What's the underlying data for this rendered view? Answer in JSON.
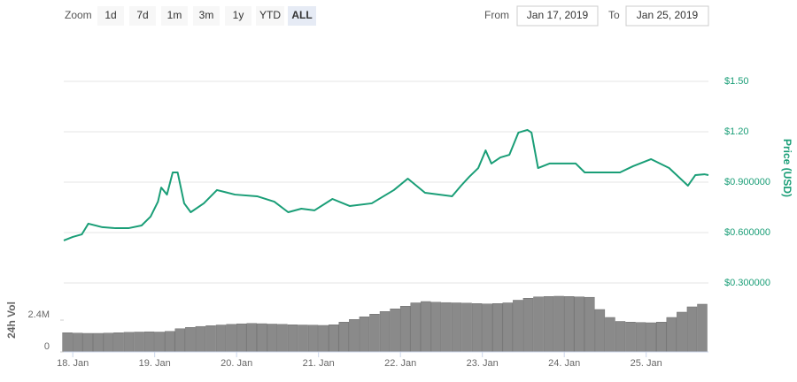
{
  "controls": {
    "zoom_label": "Zoom",
    "zoom_buttons": [
      "1d",
      "7d",
      "1m",
      "3m",
      "1y",
      "YTD",
      "ALL"
    ],
    "selected": "ALL",
    "from_label": "From",
    "from_value": "Jan 17, 2019",
    "to_label": "To",
    "to_value": "Jan 25, 2019"
  },
  "chart_data": [
    {
      "type": "line",
      "ylabel": "Price (USD)",
      "color": "#1a9e77",
      "grid": true,
      "xlim": [
        17.89,
        25.76
      ],
      "ylim": [
        0.3,
        1.75
      ],
      "yticks": [
        {
          "value": 0.3,
          "label": "$0.300000"
        },
        {
          "value": 0.6,
          "label": "$0.600000"
        },
        {
          "value": 0.9,
          "label": "$0.900000"
        },
        {
          "value": 1.2,
          "label": "$1.20"
        },
        {
          "value": 1.5,
          "label": "$1.50"
        }
      ],
      "x": [
        17.89,
        18.0,
        18.11,
        18.19,
        18.36,
        18.52,
        18.68,
        18.84,
        18.95,
        19.04,
        19.08,
        19.15,
        19.22,
        19.28,
        19.36,
        19.44,
        19.6,
        19.76,
        19.98,
        20.25,
        20.46,
        20.63,
        20.79,
        20.95,
        21.17,
        21.38,
        21.65,
        21.92,
        22.09,
        22.3,
        22.63,
        22.74,
        22.84,
        22.95,
        23.04,
        23.11,
        23.22,
        23.33,
        23.44,
        23.55,
        23.6,
        23.68,
        23.82,
        24.14,
        24.25,
        24.68,
        24.84,
        25.06,
        25.28,
        25.51,
        25.6,
        25.71,
        25.76
      ],
      "series": [
        {
          "color": "#1a9e77",
          "values": [
            0.553,
            0.574,
            0.589,
            0.653,
            0.632,
            0.626,
            0.626,
            0.642,
            0.695,
            0.784,
            0.868,
            0.826,
            0.958,
            0.958,
            0.774,
            0.721,
            0.774,
            0.853,
            0.826,
            0.816,
            0.784,
            0.721,
            0.742,
            0.732,
            0.8,
            0.758,
            0.774,
            0.853,
            0.921,
            0.837,
            0.816,
            0.879,
            0.932,
            0.984,
            1.089,
            1.011,
            1.047,
            1.063,
            1.195,
            1.211,
            1.195,
            0.984,
            1.011,
            1.011,
            0.958,
            0.958,
            0.995,
            1.037,
            0.984,
            0.879,
            0.942,
            0.947,
            0.942
          ]
        }
      ]
    },
    {
      "type": "bar",
      "ylabel": "24h Vol",
      "color": "#8a8a8a",
      "xlim": [
        17.89,
        25.76
      ],
      "ylim": [
        0,
        4900000
      ],
      "yticks": [
        0,
        {
          "value": 2400000,
          "label": "2.4M"
        }
      ],
      "xticks": [
        {
          "value": 18,
          "label": "18. Jan"
        },
        {
          "value": 19,
          "label": "19. Jan"
        },
        {
          "value": 20,
          "label": "20. Jan"
        },
        {
          "value": 21,
          "label": "21. Jan"
        },
        {
          "value": 22,
          "label": "22. Jan"
        },
        {
          "value": 23,
          "label": "23. Jan"
        },
        {
          "value": 24,
          "label": "24. Jan"
        },
        {
          "value": 25,
          "label": "25. Jan"
        }
      ],
      "x": [
        17.9375,
        18.0625,
        18.1875,
        18.3125,
        18.4375,
        18.5625,
        18.6875,
        18.8125,
        18.9375,
        19.0625,
        19.1875,
        19.3125,
        19.4375,
        19.5625,
        19.6875,
        19.8125,
        19.9375,
        20.0625,
        20.1875,
        20.3125,
        20.4375,
        20.5625,
        20.6875,
        20.8125,
        20.9375,
        21.0625,
        21.1875,
        21.3125,
        21.4375,
        21.5625,
        21.6875,
        21.8125,
        21.9375,
        22.0625,
        22.1875,
        22.3125,
        22.4375,
        22.5625,
        22.6875,
        22.8125,
        22.9375,
        23.0625,
        23.1875,
        23.3125,
        23.4375,
        23.5625,
        23.6875,
        23.8125,
        23.9375,
        24.0625,
        24.1875,
        24.3125,
        24.4375,
        24.5625,
        24.6875,
        24.8125,
        24.9375,
        25.0625,
        25.1875,
        25.3125,
        25.4375,
        25.5625,
        25.6875
      ],
      "series": [
        {
          "color": "#8a8a8a",
          "values": [
            1450000,
            1420000,
            1400000,
            1400000,
            1420000,
            1450000,
            1480000,
            1500000,
            1520000,
            1500000,
            1550000,
            1750000,
            1850000,
            1920000,
            1980000,
            2030000,
            2080000,
            2120000,
            2150000,
            2130000,
            2100000,
            2080000,
            2050000,
            2030000,
            2020000,
            2000000,
            2050000,
            2250000,
            2450000,
            2650000,
            2850000,
            3050000,
            3250000,
            3450000,
            3700000,
            3800000,
            3750000,
            3720000,
            3700000,
            3680000,
            3650000,
            3620000,
            3650000,
            3700000,
            3900000,
            4050000,
            4150000,
            4180000,
            4200000,
            4180000,
            4150000,
            4120000,
            3200000,
            2600000,
            2300000,
            2250000,
            2220000,
            2200000,
            2250000,
            2600000,
            3000000,
            3400000,
            3600000
          ]
        }
      ]
    }
  ]
}
